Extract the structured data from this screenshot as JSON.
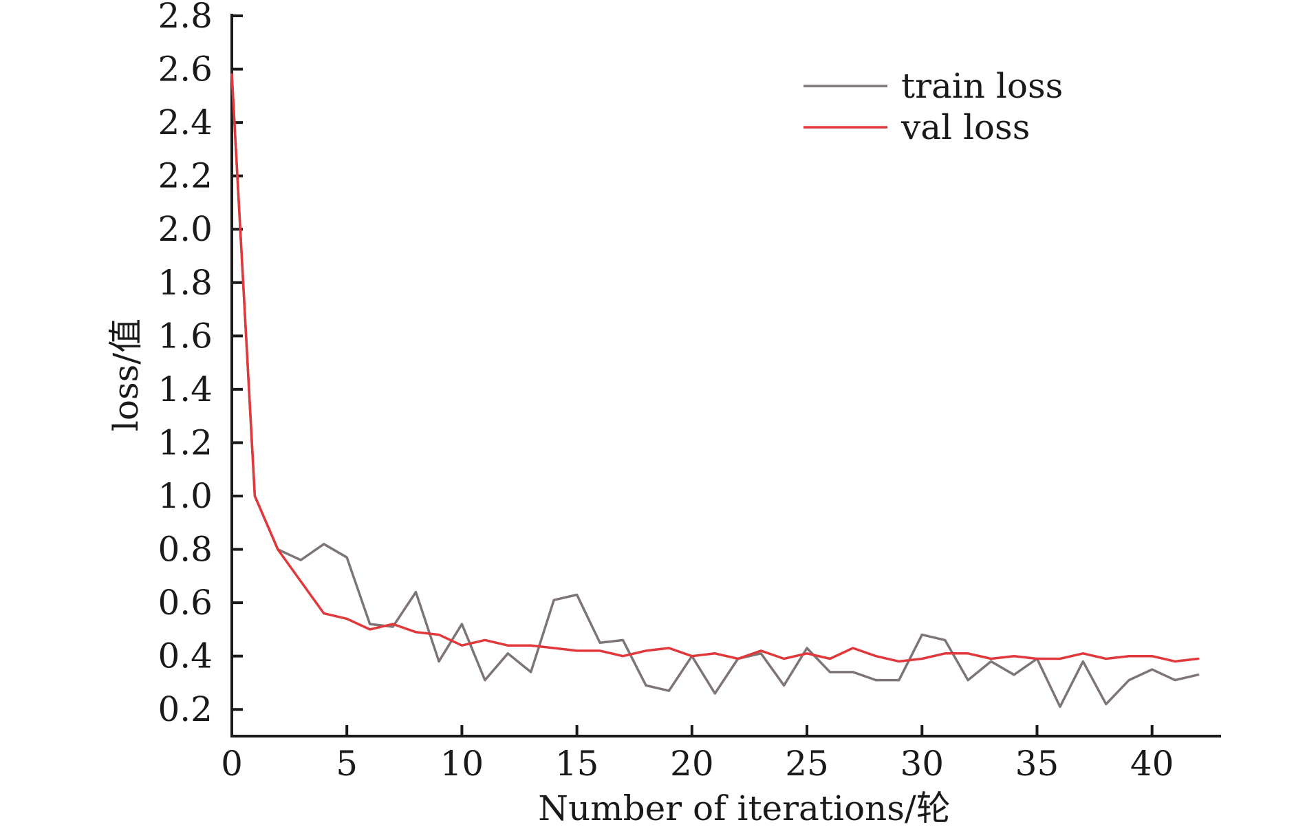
{
  "chart_data": {
    "type": "line",
    "title": "",
    "xlabel": "Number of iterations/轮",
    "ylabel": "loss/值",
    "xlim": [
      0,
      43
    ],
    "ylim": [
      0.1,
      2.8
    ],
    "xticks": [
      0,
      5,
      10,
      15,
      20,
      25,
      30,
      35,
      40
    ],
    "yticks": [
      0.2,
      0.4,
      0.6,
      0.8,
      1.0,
      1.2,
      1.4,
      1.6,
      1.8,
      2.0,
      2.2,
      2.4,
      2.6,
      2.8
    ],
    "xtick_labels": [
      "0",
      "5",
      "10",
      "15",
      "20",
      "25",
      "30",
      "35",
      "40"
    ],
    "ytick_labels": [
      "0.2",
      "0.4",
      "0.6",
      "0.8",
      "1.0",
      "1.2",
      "1.4",
      "1.6",
      "1.8",
      "2.0",
      "2.2",
      "2.4",
      "2.6",
      "2.8"
    ],
    "grid": false,
    "legend_position": "top-right",
    "x": [
      0,
      1,
      2,
      3,
      4,
      5,
      6,
      7,
      8,
      9,
      10,
      11,
      12,
      13,
      14,
      15,
      16,
      17,
      18,
      19,
      20,
      21,
      22,
      23,
      24,
      25,
      26,
      27,
      28,
      29,
      30,
      31,
      32,
      33,
      34,
      35,
      36,
      37,
      38,
      39,
      40,
      41,
      42
    ],
    "series": [
      {
        "name": "train loss",
        "color": "#7d7575",
        "values": [
          2.58,
          1.0,
          0.8,
          0.76,
          0.82,
          0.77,
          0.52,
          0.51,
          0.64,
          0.38,
          0.52,
          0.31,
          0.41,
          0.34,
          0.61,
          0.63,
          0.45,
          0.46,
          0.29,
          0.27,
          0.4,
          0.26,
          0.39,
          0.41,
          0.29,
          0.43,
          0.34,
          0.34,
          0.31,
          0.31,
          0.48,
          0.46,
          0.31,
          0.38,
          0.33,
          0.39,
          0.21,
          0.38,
          0.22,
          0.31,
          0.35,
          0.31,
          0.33
        ]
      },
      {
        "name": "val loss",
        "color": "#e0383b",
        "values": [
          2.58,
          1.0,
          0.8,
          0.68,
          0.56,
          0.54,
          0.5,
          0.52,
          0.49,
          0.48,
          0.44,
          0.46,
          0.44,
          0.44,
          0.43,
          0.42,
          0.42,
          0.4,
          0.42,
          0.43,
          0.4,
          0.41,
          0.39,
          0.42,
          0.39,
          0.41,
          0.39,
          0.43,
          0.4,
          0.38,
          0.39,
          0.41,
          0.41,
          0.39,
          0.4,
          0.39,
          0.39,
          0.41,
          0.39,
          0.4,
          0.4,
          0.38,
          0.39
        ]
      }
    ]
  }
}
